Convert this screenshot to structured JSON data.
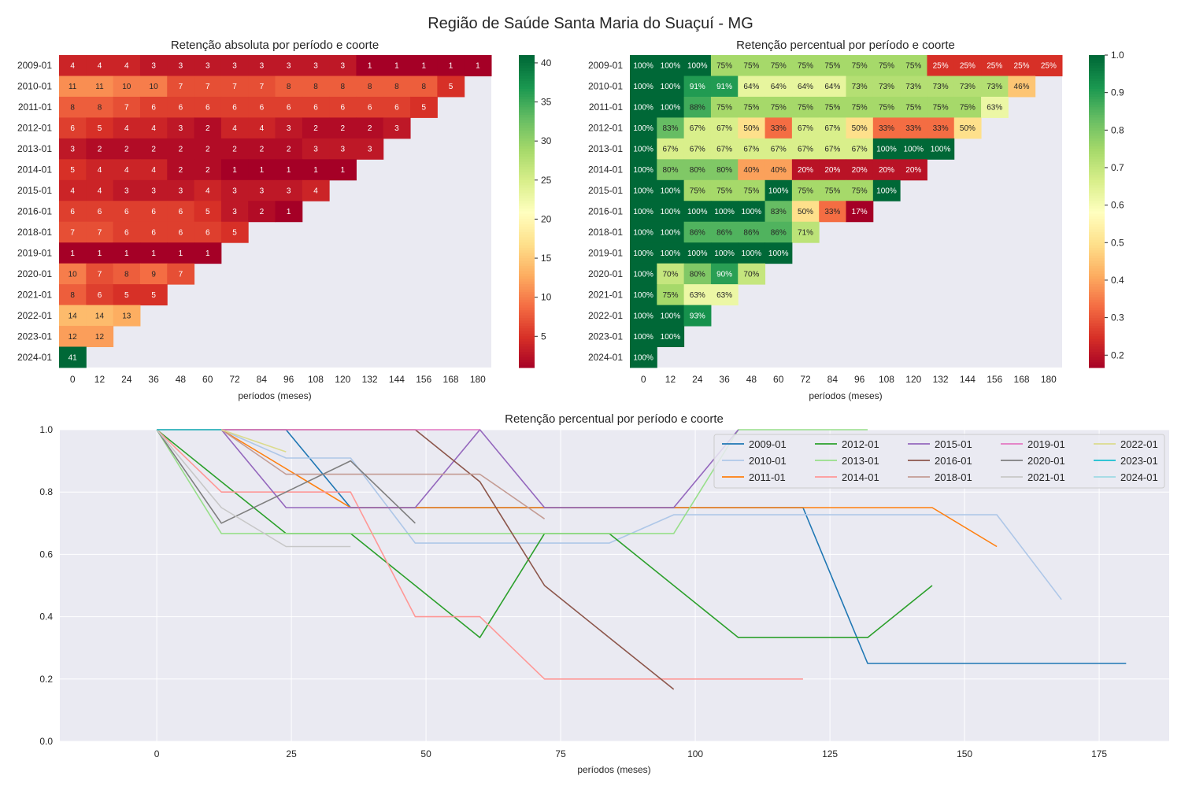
{
  "suptitle": "Região de Saúde Santa Maria do Suaçuí - MG",
  "chart_data": [
    {
      "type": "heatmap",
      "title": "Retenção absoluta por período e coorte",
      "xlabel": "períodos (meses)",
      "ylabel": "",
      "x": [
        0,
        12,
        24,
        36,
        48,
        60,
        72,
        84,
        96,
        108,
        120,
        132,
        144,
        156,
        168,
        180
      ],
      "y": [
        "2009-01",
        "2010-01",
        "2011-01",
        "2012-01",
        "2013-01",
        "2014-01",
        "2015-01",
        "2016-01",
        "2018-01",
        "2019-01",
        "2020-01",
        "2021-01",
        "2022-01",
        "2023-01",
        "2024-01"
      ],
      "values": [
        [
          4,
          4,
          4,
          3,
          3,
          3,
          3,
          3,
          3,
          3,
          3,
          1,
          1,
          1,
          1,
          1
        ],
        [
          11,
          11,
          10,
          10,
          7,
          7,
          7,
          7,
          8,
          8,
          8,
          8,
          8,
          8,
          5
        ],
        [
          8,
          8,
          7,
          6,
          6,
          6,
          6,
          6,
          6,
          6,
          6,
          6,
          6,
          5
        ],
        [
          6,
          5,
          4,
          4,
          3,
          2,
          4,
          4,
          3,
          2,
          2,
          2,
          3
        ],
        [
          3,
          2,
          2,
          2,
          2,
          2,
          2,
          2,
          2,
          3,
          3,
          3
        ],
        [
          5,
          4,
          4,
          4,
          2,
          2,
          1,
          1,
          1,
          1,
          1
        ],
        [
          4,
          4,
          3,
          3,
          3,
          4,
          3,
          3,
          3,
          4
        ],
        [
          6,
          6,
          6,
          6,
          6,
          5,
          3,
          2,
          1
        ],
        [
          7,
          7,
          6,
          6,
          6,
          6,
          5
        ],
        [
          1,
          1,
          1,
          1,
          1,
          1
        ],
        [
          10,
          7,
          8,
          9,
          7
        ],
        [
          8,
          6,
          5,
          5
        ],
        [
          14,
          14,
          13
        ],
        [
          12,
          12
        ],
        [
          41
        ]
      ],
      "colormap": "RdYlGn",
      "vmin": 1,
      "vmax": 41,
      "colorbar_ticks": [
        "5",
        "10",
        "15",
        "20",
        "25",
        "30",
        "35",
        "40"
      ]
    },
    {
      "type": "heatmap",
      "title": "Retenção percentual por período e coorte",
      "xlabel": "períodos (meses)",
      "ylabel": "",
      "x": [
        0,
        12,
        24,
        36,
        48,
        60,
        72,
        84,
        96,
        108,
        120,
        132,
        144,
        156,
        168,
        180
      ],
      "y": [
        "2009-01",
        "2010-01",
        "2011-01",
        "2012-01",
        "2013-01",
        "2014-01",
        "2015-01",
        "2016-01",
        "2018-01",
        "2019-01",
        "2020-01",
        "2021-01",
        "2022-01",
        "2023-01",
        "2024-01"
      ],
      "values": [
        [
          1,
          1,
          1,
          0.75,
          0.75,
          0.75,
          0.75,
          0.75,
          0.75,
          0.75,
          0.75,
          0.25,
          0.25,
          0.25,
          0.25,
          0.25
        ],
        [
          1,
          1,
          0.909,
          0.909,
          0.636,
          0.636,
          0.636,
          0.636,
          0.727,
          0.727,
          0.727,
          0.727,
          0.727,
          0.727,
          0.455
        ],
        [
          1,
          1,
          0.875,
          0.75,
          0.75,
          0.75,
          0.75,
          0.75,
          0.75,
          0.75,
          0.75,
          0.75,
          0.75,
          0.625
        ],
        [
          1,
          0.833,
          0.667,
          0.667,
          0.5,
          0.333,
          0.667,
          0.667,
          0.5,
          0.333,
          0.333,
          0.333,
          0.5
        ],
        [
          1,
          0.667,
          0.667,
          0.667,
          0.667,
          0.667,
          0.667,
          0.667,
          0.667,
          1,
          1,
          1
        ],
        [
          1,
          0.8,
          0.8,
          0.8,
          0.4,
          0.4,
          0.2,
          0.2,
          0.2,
          0.2,
          0.2
        ],
        [
          1,
          1,
          0.75,
          0.75,
          0.75,
          1,
          0.75,
          0.75,
          0.75,
          1
        ],
        [
          1,
          1,
          1,
          1,
          1,
          0.833,
          0.5,
          0.333,
          0.167
        ],
        [
          1,
          1,
          0.857,
          0.857,
          0.857,
          0.857,
          0.714
        ],
        [
          1,
          1,
          1,
          1,
          1,
          1
        ],
        [
          1,
          0.7,
          0.8,
          0.9,
          0.7
        ],
        [
          1,
          0.75,
          0.625,
          0.625
        ],
        [
          1,
          1,
          0.929
        ],
        [
          1,
          1
        ],
        [
          1
        ]
      ],
      "colormap": "RdYlGn",
      "vmin": 0.167,
      "vmax": 1.0,
      "colorbar_ticks": [
        "0.2",
        "0.3",
        "0.4",
        "0.5",
        "0.6",
        "0.7",
        "0.8",
        "0.9",
        "1.0"
      ]
    },
    {
      "type": "line",
      "title": "Retenção percentual por período e coorte",
      "xlabel": "períodos (meses)",
      "ylabel": "",
      "xlim": [
        -18,
        188
      ],
      "ylim": [
        0,
        1.0
      ],
      "xticks": [
        0,
        25,
        50,
        75,
        100,
        125,
        150,
        175
      ],
      "yticks": [
        "0.0",
        "0.2",
        "0.4",
        "0.6",
        "0.8",
        "1.0"
      ],
      "grid": true,
      "legend_position": "top-right",
      "series": [
        {
          "name": "2009-01",
          "color": "#1f77b4",
          "x": [
            0,
            12,
            24,
            36,
            48,
            60,
            72,
            84,
            96,
            108,
            120,
            132,
            144,
            156,
            168,
            180
          ],
          "values": [
            1,
            1,
            1,
            0.75,
            0.75,
            0.75,
            0.75,
            0.75,
            0.75,
            0.75,
            0.75,
            0.25,
            0.25,
            0.25,
            0.25,
            0.25
          ]
        },
        {
          "name": "2010-01",
          "color": "#aec7e8",
          "x": [
            0,
            12,
            24,
            36,
            48,
            60,
            72,
            84,
            96,
            108,
            120,
            132,
            144,
            156,
            168
          ],
          "values": [
            1,
            1,
            0.909,
            0.909,
            0.636,
            0.636,
            0.636,
            0.636,
            0.727,
            0.727,
            0.727,
            0.727,
            0.727,
            0.727,
            0.455
          ]
        },
        {
          "name": "2011-01",
          "color": "#ff7f0e",
          "x": [
            0,
            12,
            24,
            36,
            48,
            60,
            72,
            84,
            96,
            108,
            120,
            132,
            144,
            156
          ],
          "values": [
            1,
            1,
            0.875,
            0.75,
            0.75,
            0.75,
            0.75,
            0.75,
            0.75,
            0.75,
            0.75,
            0.75,
            0.75,
            0.625
          ]
        },
        {
          "name": "2012-01",
          "color": "#2ca02c",
          "x": [
            0,
            12,
            24,
            36,
            48,
            60,
            72,
            84,
            96,
            108,
            120,
            132,
            144
          ],
          "values": [
            1,
            0.833,
            0.667,
            0.667,
            0.5,
            0.333,
            0.667,
            0.667,
            0.5,
            0.333,
            0.333,
            0.333,
            0.5
          ]
        },
        {
          "name": "2013-01",
          "color": "#98df8a",
          "x": [
            0,
            12,
            24,
            36,
            48,
            60,
            72,
            84,
            96,
            108,
            120,
            132
          ],
          "values": [
            1,
            0.667,
            0.667,
            0.667,
            0.667,
            0.667,
            0.667,
            0.667,
            0.667,
            1,
            1,
            1
          ]
        },
        {
          "name": "2014-01",
          "color": "#ff9896",
          "x": [
            0,
            12,
            24,
            36,
            48,
            60,
            72,
            84,
            96,
            108,
            120
          ],
          "values": [
            1,
            0.8,
            0.8,
            0.8,
            0.4,
            0.4,
            0.2,
            0.2,
            0.2,
            0.2,
            0.2
          ]
        },
        {
          "name": "2015-01",
          "color": "#9467bd",
          "x": [
            0,
            12,
            24,
            36,
            48,
            60,
            72,
            84,
            96,
            108
          ],
          "values": [
            1,
            1,
            0.75,
            0.75,
            0.75,
            1,
            0.75,
            0.75,
            0.75,
            1
          ]
        },
        {
          "name": "2016-01",
          "color": "#8c564b",
          "x": [
            0,
            12,
            24,
            36,
            48,
            60,
            72,
            84,
            96
          ],
          "values": [
            1,
            1,
            1,
            1,
            1,
            0.833,
            0.5,
            0.333,
            0.167
          ]
        },
        {
          "name": "2018-01",
          "color": "#c49c94",
          "x": [
            0,
            12,
            24,
            36,
            48,
            60,
            72
          ],
          "values": [
            1,
            1,
            0.857,
            0.857,
            0.857,
            0.857,
            0.714
          ]
        },
        {
          "name": "2019-01",
          "color": "#e377c2",
          "x": [
            0,
            12,
            24,
            36,
            48,
            60
          ],
          "values": [
            1,
            1,
            1,
            1,
            1,
            1
          ]
        },
        {
          "name": "2020-01",
          "color": "#7f7f7f",
          "x": [
            0,
            12,
            24,
            36,
            48
          ],
          "values": [
            1,
            0.7,
            0.8,
            0.9,
            0.7
          ]
        },
        {
          "name": "2021-01",
          "color": "#c7c7c7",
          "x": [
            0,
            12,
            24,
            36
          ],
          "values": [
            1,
            0.75,
            0.625,
            0.625
          ]
        },
        {
          "name": "2022-01",
          "color": "#dbdb8d",
          "x": [
            0,
            12,
            24
          ],
          "values": [
            1,
            1,
            0.929
          ]
        },
        {
          "name": "2023-01",
          "color": "#17becf",
          "x": [
            0,
            12
          ],
          "values": [
            1,
            1
          ]
        },
        {
          "name": "2024-01",
          "color": "#9edae5",
          "x": [
            0
          ],
          "values": [
            1
          ]
        }
      ]
    }
  ]
}
